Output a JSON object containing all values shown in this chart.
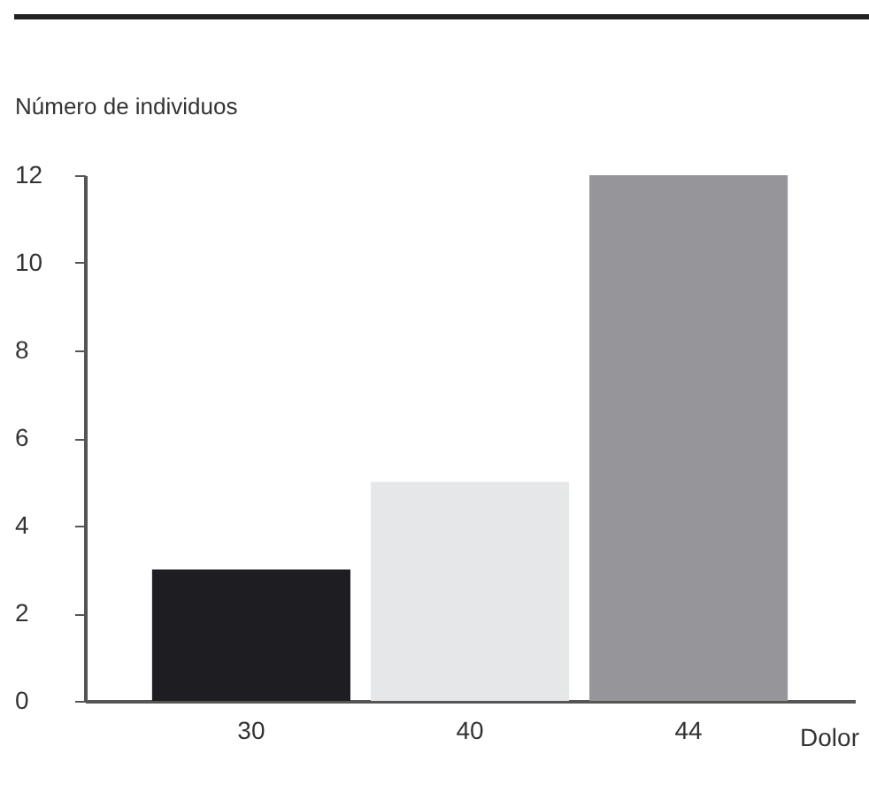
{
  "chart_data": {
    "type": "bar",
    "xlabel": "Dolor",
    "ylabel": "Número de individuos",
    "categories": [
      "30",
      "40",
      "44"
    ],
    "values": [
      3,
      5,
      12
    ],
    "colors": [
      "#1e1d21",
      "#e6e7e9",
      "#969599"
    ],
    "ylim": [
      0,
      12
    ],
    "yticks": [
      0,
      2,
      4,
      6,
      8,
      10,
      12
    ],
    "grid": false
  }
}
